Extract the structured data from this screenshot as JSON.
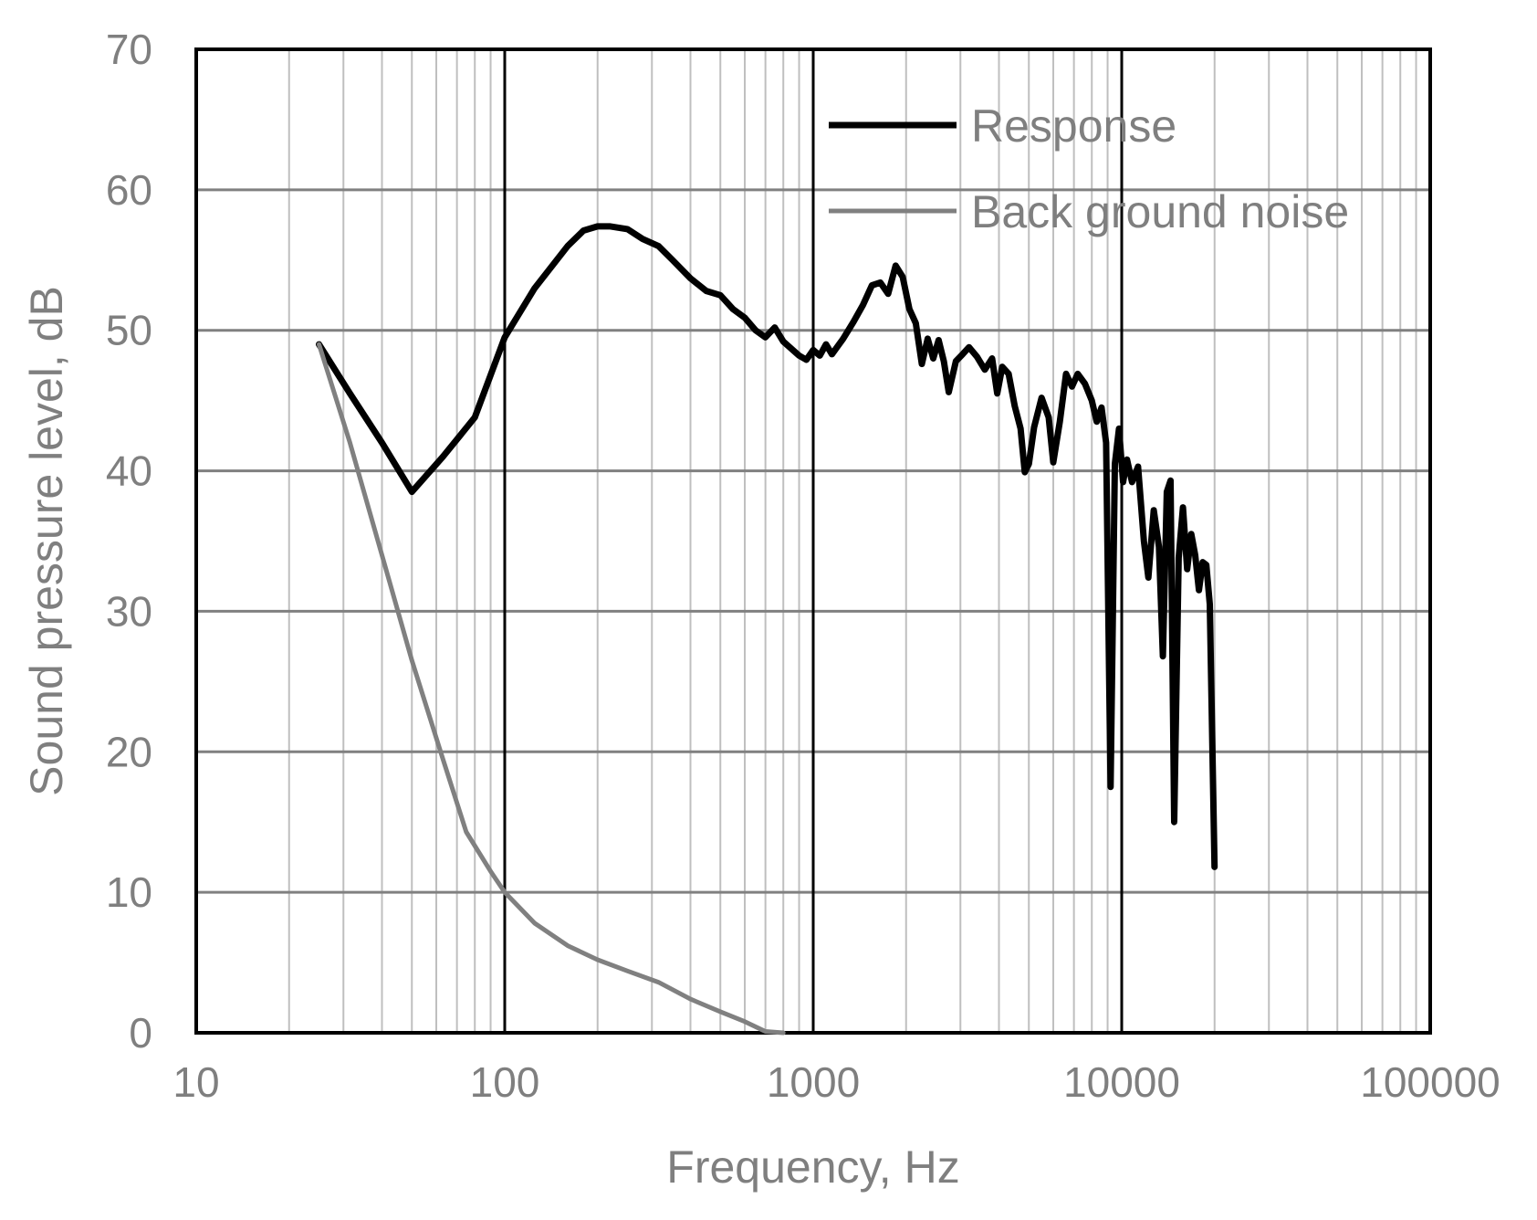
{
  "chart_data": {
    "type": "line",
    "xlabel": "Frequency, Hz",
    "ylabel": "Sound pressure level, dB",
    "xscale": "log",
    "xlim": [
      10,
      100000
    ],
    "ylim": [
      0,
      70
    ],
    "x_ticks": [
      "10",
      "100",
      "1000",
      "10000",
      "100000"
    ],
    "y_ticks": [
      "0",
      "10",
      "20",
      "30",
      "40",
      "50",
      "60",
      "70"
    ],
    "grid": true,
    "legend_position": "top-right",
    "series": [
      {
        "name": "Response",
        "color": "#000000",
        "points": [
          [
            25,
            49.0
          ],
          [
            31.5,
            45.5
          ],
          [
            40,
            42.0
          ],
          [
            50,
            38.5
          ],
          [
            63,
            41.0
          ],
          [
            80,
            43.8
          ],
          [
            100,
            49.5
          ],
          [
            125,
            53.0
          ],
          [
            160,
            56.0
          ],
          [
            180,
            57.1
          ],
          [
            200,
            57.4
          ],
          [
            220,
            57.4
          ],
          [
            250,
            57.2
          ],
          [
            280,
            56.5
          ],
          [
            315,
            56.0
          ],
          [
            350,
            55.0
          ],
          [
            400,
            53.7
          ],
          [
            450,
            52.8
          ],
          [
            500,
            52.5
          ],
          [
            550,
            51.5
          ],
          [
            600,
            50.9
          ],
          [
            650,
            50.0
          ],
          [
            700,
            49.5
          ],
          [
            750,
            50.2
          ],
          [
            800,
            49.2
          ],
          [
            900,
            48.2
          ],
          [
            950,
            47.9
          ],
          [
            1000,
            48.6
          ],
          [
            1050,
            48.2
          ],
          [
            1100,
            49.0
          ],
          [
            1150,
            48.3
          ],
          [
            1250,
            49.4
          ],
          [
            1350,
            50.6
          ],
          [
            1450,
            51.8
          ],
          [
            1550,
            53.2
          ],
          [
            1650,
            53.4
          ],
          [
            1750,
            52.6
          ],
          [
            1850,
            54.6
          ],
          [
            1950,
            53.8
          ],
          [
            2050,
            51.5
          ],
          [
            2150,
            50.5
          ],
          [
            2250,
            47.6
          ],
          [
            2350,
            49.4
          ],
          [
            2450,
            48.0
          ],
          [
            2550,
            49.3
          ],
          [
            2650,
            47.8
          ],
          [
            2750,
            45.6
          ],
          [
            2900,
            47.8
          ],
          [
            3050,
            48.3
          ],
          [
            3200,
            48.8
          ],
          [
            3400,
            48.1
          ],
          [
            3600,
            47.2
          ],
          [
            3800,
            48.0
          ],
          [
            3950,
            45.5
          ],
          [
            4100,
            47.4
          ],
          [
            4300,
            46.9
          ],
          [
            4500,
            44.6
          ],
          [
            4700,
            43.0
          ],
          [
            4850,
            39.9
          ],
          [
            5000,
            40.5
          ],
          [
            5200,
            43.1
          ],
          [
            5500,
            45.2
          ],
          [
            5800,
            43.8
          ],
          [
            6000,
            40.6
          ],
          [
            6300,
            43.5
          ],
          [
            6600,
            46.9
          ],
          [
            6900,
            46.0
          ],
          [
            7200,
            46.9
          ],
          [
            7600,
            46.2
          ],
          [
            8000,
            45.0
          ],
          [
            8300,
            43.5
          ],
          [
            8600,
            44.5
          ],
          [
            8900,
            42.0
          ],
          [
            9200,
            17.5
          ],
          [
            9500,
            40.5
          ],
          [
            9800,
            43.0
          ],
          [
            10100,
            39.2
          ],
          [
            10400,
            40.8
          ],
          [
            10800,
            39.2
          ],
          [
            11300,
            40.3
          ],
          [
            11800,
            35.0
          ],
          [
            12200,
            32.4
          ],
          [
            12700,
            37.2
          ],
          [
            13200,
            34.6
          ],
          [
            13600,
            26.8
          ],
          [
            14000,
            38.5
          ],
          [
            14400,
            39.3
          ],
          [
            14800,
            15.0
          ],
          [
            15300,
            33.8
          ],
          [
            15800,
            37.4
          ],
          [
            16300,
            33.0
          ],
          [
            16800,
            35.5
          ],
          [
            17300,
            34.0
          ],
          [
            17800,
            31.5
          ],
          [
            18300,
            33.5
          ],
          [
            18800,
            33.3
          ],
          [
            19300,
            30.5
          ],
          [
            20000,
            11.8
          ]
        ]
      },
      {
        "name": "Back ground noise",
        "color": "#808080",
        "points": [
          [
            25,
            49.0
          ],
          [
            31.5,
            42.0
          ],
          [
            40,
            34.0
          ],
          [
            50,
            26.5
          ],
          [
            63,
            19.5
          ],
          [
            75,
            14.3
          ],
          [
            90,
            11.5
          ],
          [
            100,
            10.0
          ],
          [
            125,
            7.8
          ],
          [
            160,
            6.2
          ],
          [
            200,
            5.2
          ],
          [
            250,
            4.4
          ],
          [
            315,
            3.6
          ],
          [
            400,
            2.4
          ],
          [
            500,
            1.5
          ],
          [
            600,
            0.8
          ],
          [
            700,
            0.1
          ],
          [
            800,
            0.0
          ]
        ]
      }
    ]
  },
  "legend": {
    "items": [
      {
        "label": "Response",
        "color": "#000000"
      },
      {
        "label": "Back ground noise",
        "color": "#808080"
      }
    ]
  }
}
